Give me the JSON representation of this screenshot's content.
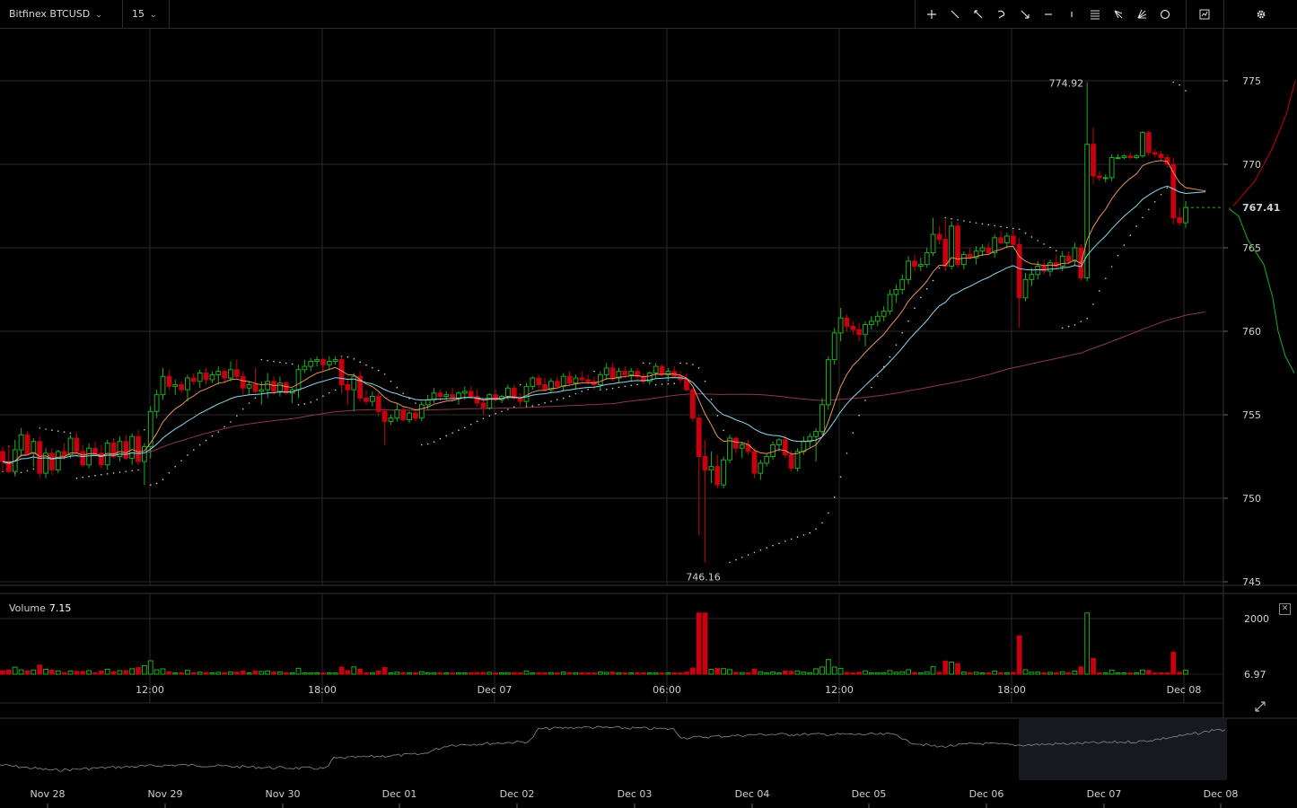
{
  "toolbar": {
    "symbol": "Bitfinex BTCUSD",
    "interval": "15",
    "tools": [
      "crosshair-icon",
      "trend-line-icon",
      "ray-icon",
      "arrow-icon",
      "curve-icon",
      "arrow-down-right-icon",
      "horizontal-line-icon",
      "vertical-line-icon",
      "fib-levels-icon",
      "pitchfork-icon",
      "gann-fan-icon",
      "circle-icon"
    ],
    "indicators_icon": "indicators-icon",
    "settings_icon": "gear-icon"
  },
  "chart_data": {
    "type": "candlestick",
    "price_axis": {
      "ticks": [
        775,
        770,
        765,
        760,
        755,
        750,
        745
      ],
      "min": 745,
      "max": 777
    },
    "last_price": "767.41",
    "high_label": "774.92",
    "low_label": "746.16",
    "time_axis": [
      "12:00",
      "18:00",
      "Dec 07",
      "06:00",
      "12:00",
      "18:00",
      "Dec 08"
    ],
    "volume": {
      "label": "Volume",
      "value": "7.15",
      "ticks": [
        "2000",
        "6.97"
      ]
    },
    "navigator_dates": [
      "Nov 28",
      "Nov 29",
      "Nov 30",
      "Dec 01",
      "Dec 02",
      "Dec 03",
      "Dec 04",
      "Dec 05",
      "Dec 06",
      "Dec 07",
      "Dec 08"
    ],
    "colors": {
      "up": "#1fae1f",
      "down": "#c8000f",
      "ema_fast": "#e8925a",
      "ema_slow": "#8fd6ee",
      "sma_long": "#8a3a4a",
      "grid": "#2a2a2a"
    },
    "candles": [
      [
        752.8,
        753.1,
        751.6,
        752.2
      ],
      [
        752.2,
        753.2,
        751.5,
        751.6
      ],
      [
        751.6,
        753.5,
        751.3,
        752.9
      ],
      [
        752.9,
        754.2,
        752.5,
        753.8
      ],
      [
        753.8,
        754.0,
        752.6,
        752.7
      ],
      [
        752.7,
        753.6,
        751.9,
        753.4
      ],
      [
        753.4,
        753.7,
        751.2,
        751.5
      ],
      [
        751.5,
        753.0,
        751.2,
        752.7
      ],
      [
        752.7,
        753.0,
        751.4,
        751.7
      ],
      [
        751.7,
        752.9,
        751.5,
        752.8
      ],
      [
        752.8,
        753.3,
        752.3,
        752.6
      ],
      [
        752.6,
        753.8,
        752.4,
        753.6
      ],
      [
        753.6,
        753.9,
        752.6,
        752.8
      ],
      [
        752.8,
        753.2,
        751.9,
        752.0
      ],
      [
        752.0,
        753.3,
        751.8,
        753.0
      ],
      [
        753.0,
        753.4,
        752.6,
        752.7
      ],
      [
        752.7,
        753.2,
        751.8,
        752.0
      ],
      [
        752.0,
        753.5,
        751.7,
        753.3
      ],
      [
        753.3,
        753.6,
        752.4,
        752.5
      ],
      [
        752.5,
        753.7,
        752.2,
        753.4
      ],
      [
        753.4,
        753.8,
        752.3,
        752.4
      ],
      [
        752.4,
        753.9,
        752.0,
        753.7
      ],
      [
        753.7,
        754.1,
        752.0,
        752.2
      ],
      [
        752.2,
        753.3,
        750.8,
        753.1
      ],
      [
        753.1,
        755.5,
        752.4,
        755.2
      ],
      [
        755.2,
        756.5,
        754.8,
        756.2
      ],
      [
        756.2,
        757.8,
        755.9,
        757.3
      ],
      [
        757.3,
        757.7,
        756.5,
        756.7
      ],
      [
        756.7,
        757.1,
        756.2,
        756.8
      ],
      [
        756.8,
        757.0,
        756.3,
        756.5
      ],
      [
        756.5,
        757.4,
        755.8,
        757.2
      ],
      [
        757.2,
        757.5,
        756.8,
        757.0
      ],
      [
        757.0,
        757.7,
        756.6,
        757.5
      ],
      [
        757.5,
        757.8,
        756.8,
        757.1
      ],
      [
        757.1,
        757.6,
        756.9,
        757.4
      ],
      [
        757.4,
        757.9,
        756.8,
        757.6
      ],
      [
        757.6,
        757.8,
        756.9,
        757.2
      ],
      [
        757.2,
        758.2,
        757.0,
        757.7
      ],
      [
        757.7,
        758.3,
        757.2,
        757.3
      ],
      [
        757.3,
        757.6,
        756.2,
        756.6
      ],
      [
        756.6,
        757.0,
        756.2,
        756.8
      ],
      [
        756.8,
        757.8,
        756.3,
        756.4
      ],
      [
        756.4,
        757.0,
        755.6,
        756.5
      ],
      [
        756.5,
        757.5,
        756.0,
        757.0
      ],
      [
        757.0,
        757.3,
        756.2,
        756.4
      ],
      [
        756.4,
        757.3,
        756.1,
        756.9
      ],
      [
        756.9,
        757.0,
        756.2,
        756.3
      ],
      [
        756.3,
        756.6,
        755.7,
        756.5
      ],
      [
        756.5,
        758.0,
        756.0,
        757.7
      ],
      [
        757.7,
        758.3,
        757.5,
        757.9
      ],
      [
        757.9,
        758.4,
        757.6,
        758.2
      ],
      [
        758.2,
        758.5,
        757.9,
        758.3
      ],
      [
        758.3,
        758.4,
        757.6,
        758.0
      ],
      [
        758.0,
        758.5,
        757.7,
        758.2
      ],
      [
        758.2,
        758.5,
        758.0,
        758.3
      ],
      [
        758.3,
        758.5,
        756.3,
        756.8
      ],
      [
        756.8,
        757.2,
        755.6,
        756.5
      ],
      [
        756.5,
        757.5,
        755.2,
        757.3
      ],
      [
        757.3,
        757.6,
        755.8,
        756.0
      ],
      [
        756.0,
        756.5,
        755.6,
        755.8
      ],
      [
        755.8,
        756.4,
        755.5,
        756.1
      ],
      [
        756.1,
        756.3,
        754.9,
        755.2
      ],
      [
        755.2,
        755.4,
        753.2,
        754.6
      ],
      [
        754.6,
        755.0,
        754.4,
        754.8
      ],
      [
        754.8,
        755.7,
        754.6,
        755.3
      ],
      [
        755.3,
        755.5,
        754.6,
        754.7
      ],
      [
        754.7,
        755.2,
        754.5,
        755.1
      ],
      [
        755.1,
        755.4,
        754.6,
        754.8
      ],
      [
        754.8,
        755.8,
        754.6,
        755.6
      ],
      [
        755.6,
        756.2,
        755.3,
        755.9
      ],
      [
        755.9,
        756.6,
        755.7,
        756.3
      ],
      [
        756.3,
        756.5,
        755.8,
        756.1
      ],
      [
        756.1,
        756.4,
        755.9,
        756.2
      ],
      [
        756.2,
        756.6,
        755.8,
        756.0
      ],
      [
        756.0,
        756.4,
        755.6,
        756.3
      ],
      [
        756.3,
        756.7,
        755.9,
        756.4
      ],
      [
        756.4,
        756.7,
        756.0,
        756.1
      ],
      [
        756.1,
        756.5,
        755.5,
        755.7
      ],
      [
        755.7,
        756.0,
        755.0,
        755.4
      ],
      [
        755.4,
        756.3,
        755.3,
        756.2
      ],
      [
        756.2,
        756.5,
        755.8,
        755.9
      ],
      [
        755.9,
        756.2,
        755.7,
        756.1
      ],
      [
        756.1,
        756.8,
        755.9,
        756.6
      ],
      [
        756.6,
        756.8,
        755.9,
        756.0
      ],
      [
        756.0,
        756.3,
        755.5,
        755.8
      ],
      [
        755.8,
        756.9,
        755.5,
        756.7
      ],
      [
        756.7,
        757.3,
        756.5,
        757.2
      ],
      [
        757.2,
        757.4,
        756.6,
        756.8
      ],
      [
        756.8,
        757.2,
        756.4,
        756.5
      ],
      [
        756.5,
        757.2,
        756.3,
        757.0
      ],
      [
        757.0,
        757.3,
        756.6,
        756.7
      ],
      [
        756.7,
        757.5,
        756.4,
        757.3
      ],
      [
        757.3,
        757.6,
        756.8,
        756.9
      ],
      [
        756.9,
        757.4,
        756.5,
        757.2
      ],
      [
        757.2,
        757.6,
        756.9,
        757.1
      ],
      [
        757.1,
        757.4,
        756.8,
        757.0
      ],
      [
        757.0,
        757.3,
        756.5,
        756.8
      ],
      [
        756.8,
        757.6,
        756.5,
        757.4
      ],
      [
        757.4,
        758.1,
        757.1,
        757.8
      ],
      [
        757.8,
        758.1,
        757.0,
        757.2
      ],
      [
        757.2,
        757.8,
        756.9,
        757.6
      ],
      [
        757.6,
        757.9,
        757.2,
        757.4
      ],
      [
        757.4,
        757.8,
        757.0,
        757.6
      ],
      [
        757.6,
        757.8,
        757.1,
        757.3
      ],
      [
        757.3,
        757.5,
        756.8,
        757.0
      ],
      [
        757.0,
        757.6,
        756.8,
        757.5
      ],
      [
        757.5,
        758.1,
        757.2,
        757.9
      ],
      [
        757.9,
        758.0,
        757.3,
        757.4
      ],
      [
        757.4,
        757.8,
        757.0,
        757.6
      ],
      [
        757.6,
        757.9,
        757.2,
        757.3
      ],
      [
        757.3,
        757.6,
        756.9,
        757.1
      ],
      [
        757.1,
        757.5,
        756.4,
        756.5
      ],
      [
        756.5,
        756.6,
        754.6,
        754.8
      ],
      [
        754.8,
        755.0,
        747.8,
        752.5
      ],
      [
        752.5,
        753.5,
        746.16,
        751.7
      ],
      [
        751.7,
        752.8,
        750.9,
        751.9
      ],
      [
        751.9,
        752.6,
        750.6,
        750.8
      ],
      [
        750.8,
        752.5,
        750.6,
        752.3
      ],
      [
        752.3,
        753.8,
        752.1,
        753.6
      ],
      [
        753.6,
        753.7,
        752.7,
        753.0
      ],
      [
        753.0,
        753.4,
        752.4,
        753.2
      ],
      [
        753.2,
        753.5,
        752.6,
        752.8
      ],
      [
        752.8,
        753.0,
        751.2,
        751.5
      ],
      [
        751.5,
        752.3,
        751.1,
        752.1
      ],
      [
        752.1,
        752.7,
        751.9,
        752.5
      ],
      [
        752.5,
        753.4,
        752.3,
        753.2
      ],
      [
        753.2,
        753.6,
        752.8,
        753.5
      ],
      [
        753.5,
        753.8,
        752.4,
        752.6
      ],
      [
        752.6,
        752.9,
        751.6,
        751.8
      ],
      [
        751.8,
        753.0,
        751.6,
        752.8
      ],
      [
        752.8,
        753.7,
        752.6,
        753.4
      ],
      [
        753.4,
        753.9,
        753.0,
        753.7
      ],
      [
        753.7,
        754.2,
        752.2,
        754.0
      ],
      [
        754.0,
        756.0,
        753.8,
        755.6
      ],
      [
        755.6,
        758.5,
        755.3,
        758.3
      ],
      [
        758.3,
        760.2,
        758.0,
        759.9
      ],
      [
        759.9,
        761.4,
        759.4,
        760.8
      ],
      [
        760.8,
        761.0,
        760.0,
        760.3
      ],
      [
        760.3,
        760.6,
        759.8,
        760.1
      ],
      [
        760.1,
        760.5,
        759.4,
        759.8
      ],
      [
        759.8,
        760.6,
        759.1,
        760.4
      ],
      [
        760.4,
        760.9,
        760.1,
        760.6
      ],
      [
        760.6,
        761.2,
        760.3,
        760.9
      ],
      [
        760.9,
        761.5,
        760.6,
        761.2
      ],
      [
        761.2,
        762.5,
        761.0,
        762.2
      ],
      [
        762.2,
        762.8,
        761.7,
        762.5
      ],
      [
        762.5,
        763.4,
        762.2,
        763.1
      ],
      [
        763.1,
        764.5,
        762.8,
        764.2
      ],
      [
        764.2,
        764.6,
        763.6,
        763.9
      ],
      [
        763.9,
        764.4,
        763.6,
        764.0
      ],
      [
        764.0,
        765.0,
        763.8,
        764.7
      ],
      [
        764.7,
        766.8,
        764.5,
        765.8
      ],
      [
        765.8,
        766.3,
        765.2,
        765.5
      ],
      [
        765.5,
        766.7,
        763.6,
        763.9
      ],
      [
        763.9,
        766.6,
        763.7,
        766.3
      ],
      [
        766.3,
        766.5,
        763.8,
        764.0
      ],
      [
        764.0,
        764.8,
        763.7,
        764.6
      ],
      [
        764.6,
        765.0,
        764.3,
        764.4
      ],
      [
        764.4,
        765.1,
        764.0,
        764.8
      ],
      [
        764.8,
        765.2,
        764.5,
        765.0
      ],
      [
        765.0,
        765.3,
        764.6,
        764.7
      ],
      [
        764.7,
        765.8,
        764.4,
        765.6
      ],
      [
        765.6,
        766.0,
        765.2,
        765.3
      ],
      [
        765.3,
        765.9,
        765.0,
        765.7
      ],
      [
        765.7,
        766.1,
        765.1,
        765.2
      ],
      [
        765.2,
        765.6,
        760.2,
        762.0
      ],
      [
        762.0,
        763.5,
        761.8,
        763.1
      ],
      [
        763.1,
        763.8,
        762.7,
        763.4
      ],
      [
        763.4,
        764.2,
        763.1,
        763.9
      ],
      [
        763.9,
        764.3,
        763.4,
        763.6
      ],
      [
        763.6,
        764.3,
        763.3,
        764.1
      ],
      [
        764.1,
        764.6,
        763.7,
        763.9
      ],
      [
        763.9,
        764.8,
        763.6,
        764.5
      ],
      [
        764.5,
        764.8,
        764.0,
        764.2
      ],
      [
        764.2,
        765.3,
        763.9,
        765.0
      ],
      [
        765.0,
        765.2,
        763.0,
        763.2
      ],
      [
        763.2,
        774.92,
        763.0,
        771.2
      ],
      [
        771.2,
        772.2,
        768.8,
        769.3
      ],
      [
        769.3,
        769.6,
        769.0,
        769.2
      ],
      [
        769.2,
        769.4,
        768.9,
        769.2
      ],
      [
        769.2,
        770.6,
        769.0,
        770.4
      ],
      [
        770.4,
        770.6,
        770.3,
        770.4
      ],
      [
        770.4,
        770.6,
        770.3,
        770.5
      ],
      [
        770.5,
        770.7,
        770.3,
        770.4
      ],
      [
        770.4,
        770.6,
        770.3,
        770.5
      ],
      [
        770.5,
        772.0,
        770.4,
        771.9
      ],
      [
        771.9,
        772.0,
        770.5,
        770.7
      ],
      [
        770.7,
        770.9,
        770.4,
        770.6
      ],
      [
        770.6,
        770.8,
        770.2,
        770.4
      ],
      [
        770.4,
        770.6,
        769.8,
        770.0
      ],
      [
        770.0,
        770.4,
        766.4,
        766.8
      ],
      [
        766.8,
        767.4,
        766.3,
        766.5
      ],
      [
        766.5,
        767.8,
        766.2,
        767.41
      ]
    ]
  }
}
